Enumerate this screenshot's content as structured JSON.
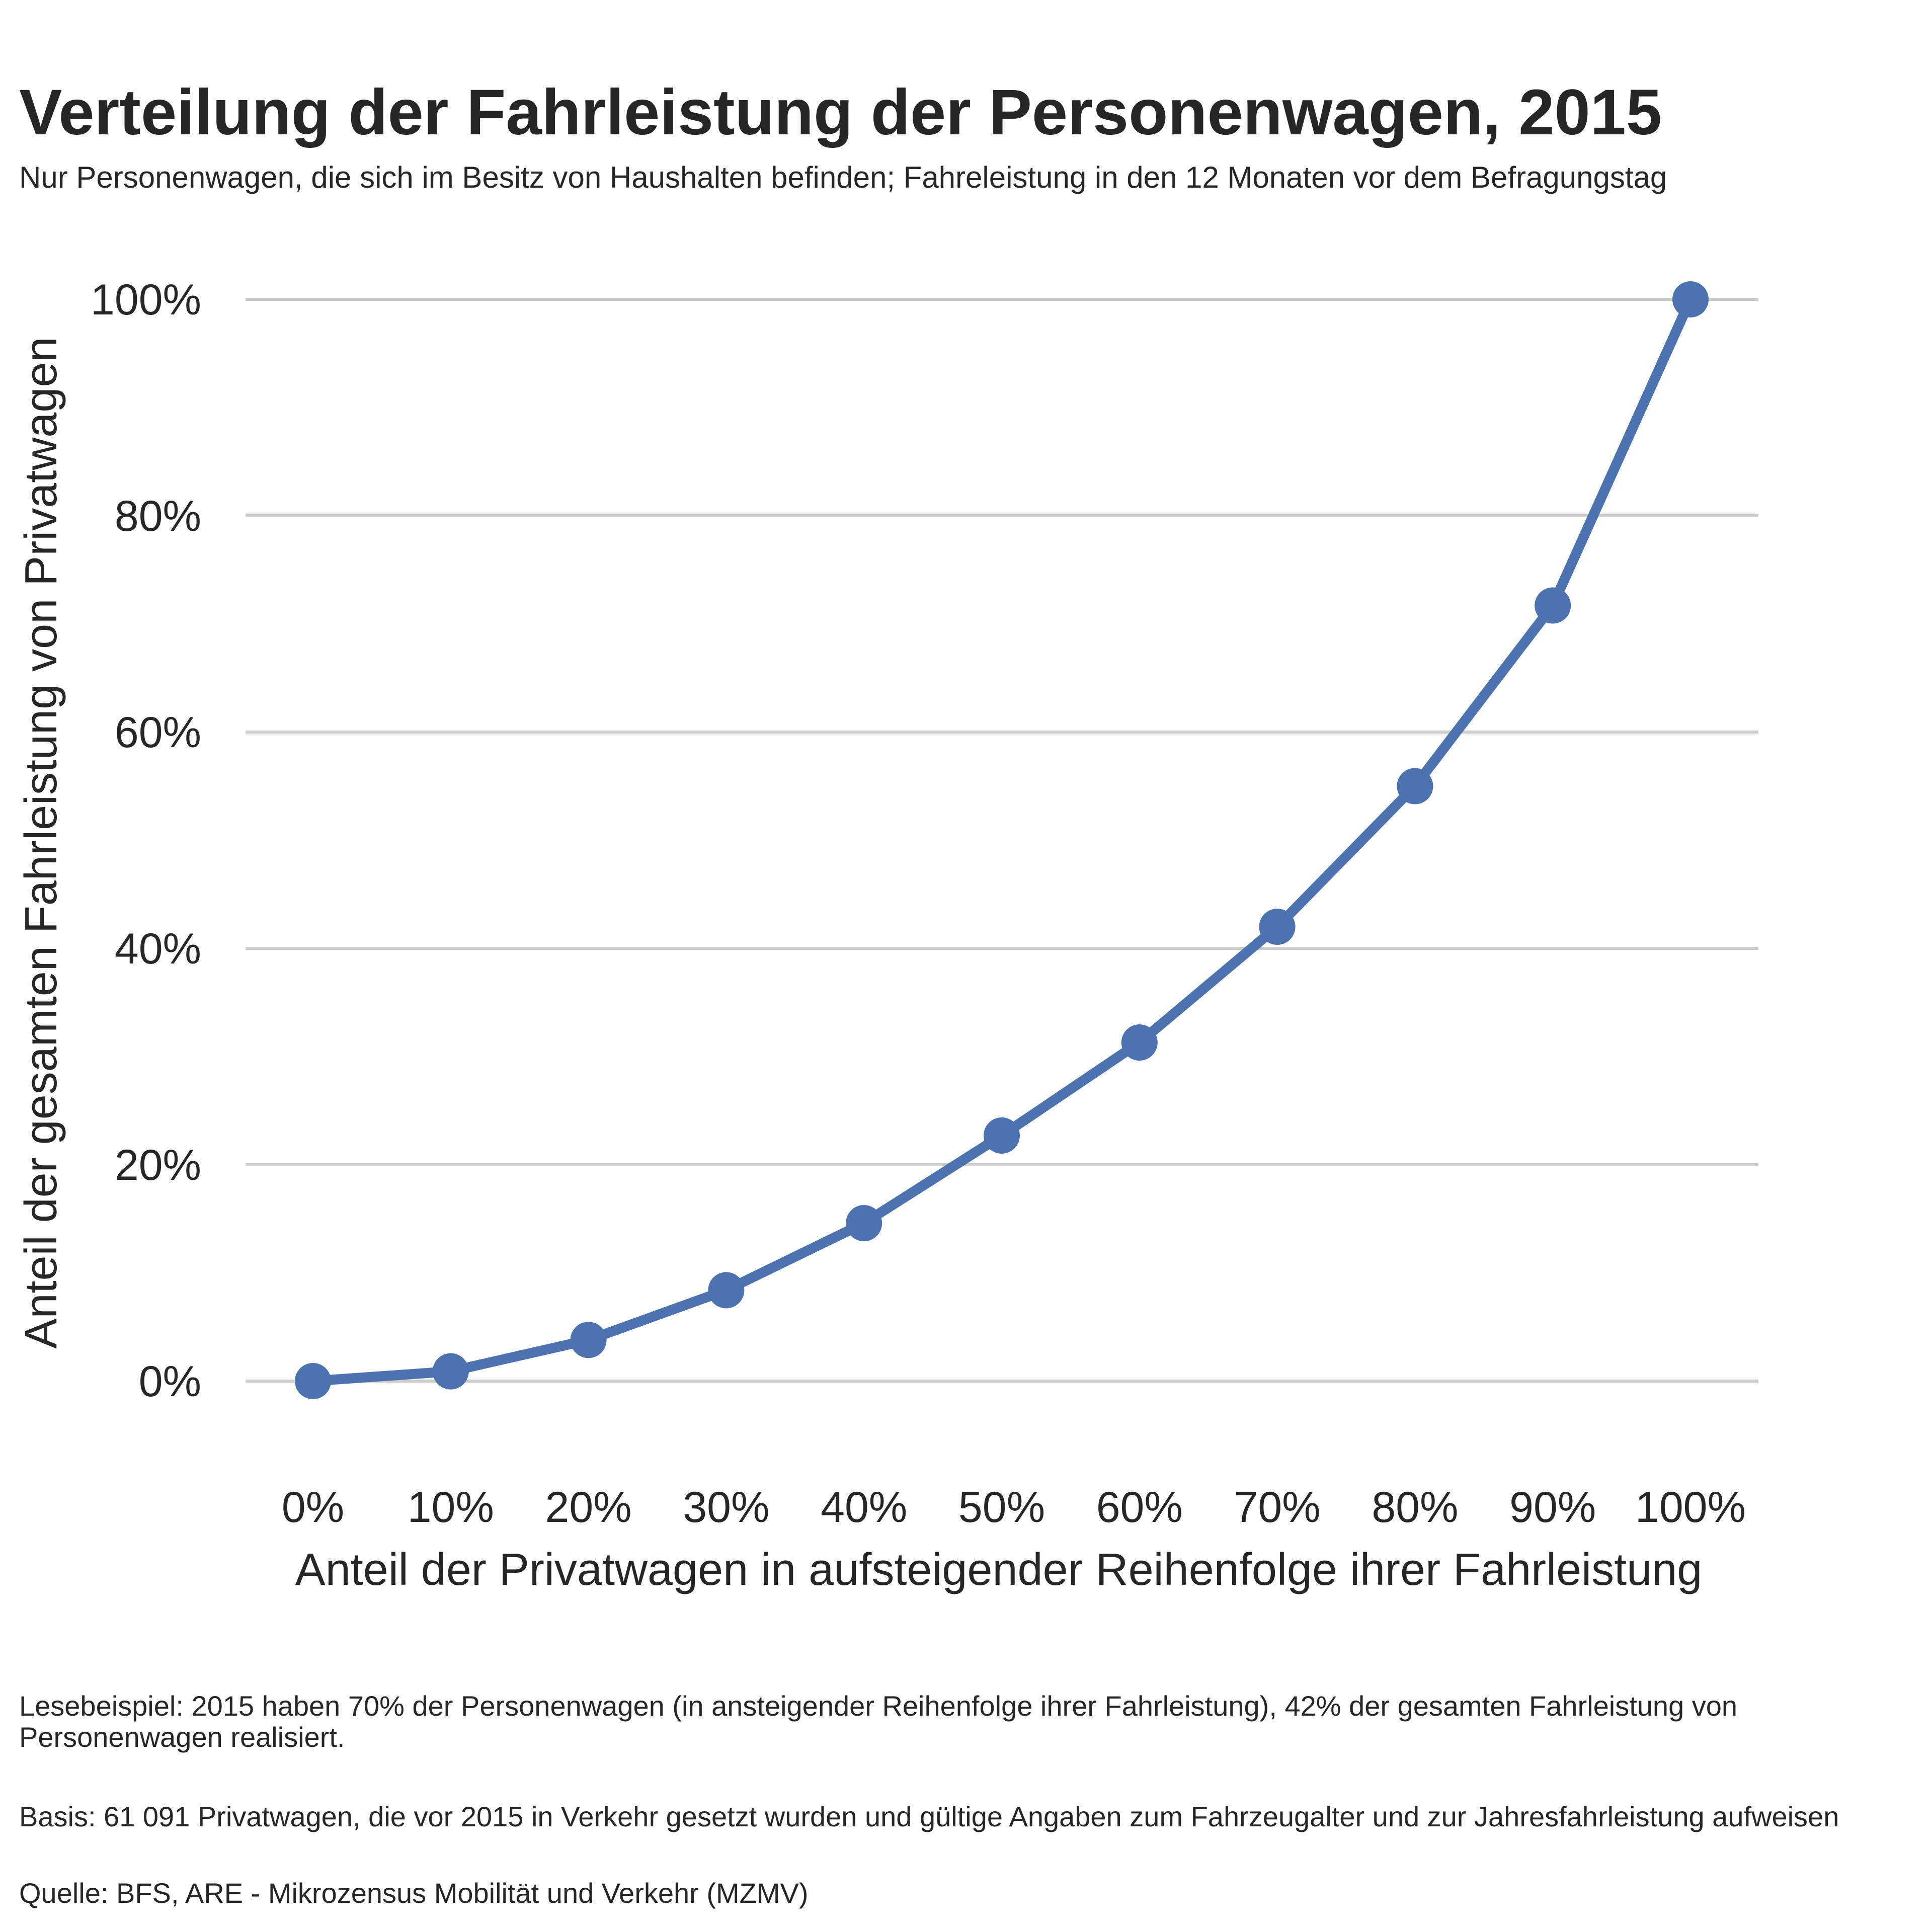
{
  "title": "Verteilung der Fahrleistung der Personenwagen, 2015",
  "subtitle": "Nur Personenwagen, die sich im Besitz von Haushalten befinden; Fahreleistung in den 12 Monaten vor dem Befragungstag",
  "chart_data": {
    "type": "line",
    "x": [
      0,
      10,
      20,
      30,
      40,
      50,
      60,
      70,
      80,
      90,
      100
    ],
    "series": [
      {
        "values": [
          0,
          0.9,
          3.8,
          8.4,
          14.6,
          22.7,
          31.3,
          42,
          55,
          71.7,
          100
        ]
      }
    ],
    "xticks": [
      "0%",
      "10%",
      "20%",
      "30%",
      "40%",
      "50%",
      "60%",
      "70%",
      "80%",
      "90%",
      "100%"
    ],
    "yticks": [
      "0%",
      "20%",
      "40%",
      "60%",
      "80%",
      "100%"
    ],
    "ytick_values": [
      0,
      20,
      40,
      60,
      80,
      100
    ],
    "xlabel": "Anteil der Privatwagen in aufsteigender Reihenfolge ihrer Fahrleistung",
    "ylabel": "Anteil der gesamten Fahrleistung von Privatwagen",
    "xlim": [
      0,
      100
    ],
    "ylim": [
      0,
      100
    ],
    "grid": "horizontal",
    "line_color": "#4C72B0"
  },
  "notes": {
    "reading_example": "Lesebeispiel: 2015 haben 70% der Personenwagen (in ansteigender Reihenfolge ihrer Fahrleistung), 42% der gesamten Fahrleistung von Personenwagen realisiert.",
    "basis": "Basis: 61 091 Privatwagen, die vor 2015 in Verkehr gesetzt wurden und gültige Angaben zum Fahrzeugalter und zur Jahresfahrleistung aufweisen",
    "source": "Quelle: BFS, ARE - Mikrozensus Mobilität und Verkehr (MZMV)"
  }
}
